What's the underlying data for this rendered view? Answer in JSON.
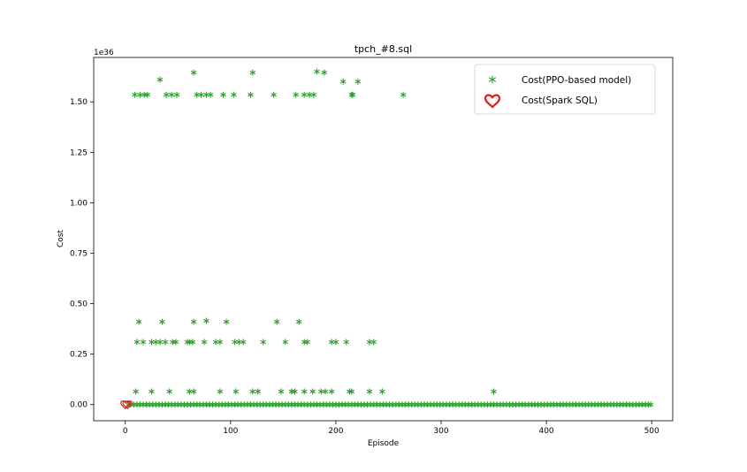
{
  "chart_data": {
    "type": "scatter",
    "title": "tpch_#8.sql",
    "xlabel": "Episode",
    "ylabel": "Cost",
    "offset_label": "1e36",
    "xlim": [
      -30,
      520
    ],
    "ylim": [
      -0.08,
      1.72
    ],
    "x_ticks": [
      0,
      100,
      200,
      300,
      400,
      500
    ],
    "y_ticks": [
      0.0,
      0.25,
      0.5,
      0.75,
      1.0,
      1.25,
      1.5
    ],
    "y_tick_labels": [
      "0.00",
      "0.25",
      "0.50",
      "0.75",
      "1.00",
      "1.25",
      "1.50"
    ],
    "legend_position": "top-right",
    "series": [
      {
        "name": "Cost(PPO-based model)",
        "marker": "star",
        "color": "#2ca02c",
        "points": [
          [
            9,
            1.535
          ],
          [
            14,
            1.535
          ],
          [
            18,
            1.535
          ],
          [
            21,
            1.535
          ],
          [
            33,
            1.61
          ],
          [
            39,
            1.535
          ],
          [
            44,
            1.535
          ],
          [
            49,
            1.535
          ],
          [
            65,
            1.645
          ],
          [
            68,
            1.535
          ],
          [
            72,
            1.535
          ],
          [
            77,
            1.535
          ],
          [
            81,
            1.535
          ],
          [
            93,
            1.535
          ],
          [
            103,
            1.535
          ],
          [
            119,
            1.535
          ],
          [
            121,
            1.645
          ],
          [
            141,
            1.535
          ],
          [
            162,
            1.535
          ],
          [
            170,
            1.535
          ],
          [
            175,
            1.535
          ],
          [
            179,
            1.535
          ],
          [
            182,
            1.65
          ],
          [
            189,
            1.645
          ],
          [
            207,
            1.6
          ],
          [
            215,
            1.535
          ],
          [
            216,
            1.535
          ],
          [
            221,
            1.6
          ],
          [
            264,
            1.535
          ],
          [
            13,
            0.41
          ],
          [
            35,
            0.41
          ],
          [
            65,
            0.41
          ],
          [
            77,
            0.415
          ],
          [
            96,
            0.41
          ],
          [
            144,
            0.41
          ],
          [
            165,
            0.41
          ],
          [
            11,
            0.31
          ],
          [
            17,
            0.31
          ],
          [
            25,
            0.31
          ],
          [
            29,
            0.31
          ],
          [
            33,
            0.31
          ],
          [
            38,
            0.31
          ],
          [
            45,
            0.31
          ],
          [
            48,
            0.31
          ],
          [
            59,
            0.31
          ],
          [
            61,
            0.31
          ],
          [
            64,
            0.31
          ],
          [
            75,
            0.31
          ],
          [
            86,
            0.31
          ],
          [
            90,
            0.31
          ],
          [
            104,
            0.31
          ],
          [
            108,
            0.31
          ],
          [
            112,
            0.31
          ],
          [
            131,
            0.31
          ],
          [
            152,
            0.31
          ],
          [
            170,
            0.31
          ],
          [
            173,
            0.31
          ],
          [
            196,
            0.31
          ],
          [
            200,
            0.31
          ],
          [
            210,
            0.31
          ],
          [
            232,
            0.31
          ],
          [
            236,
            0.31
          ],
          [
            10,
            0.065
          ],
          [
            25,
            0.065
          ],
          [
            42,
            0.065
          ],
          [
            61,
            0.065
          ],
          [
            65,
            0.065
          ],
          [
            90,
            0.065
          ],
          [
            105,
            0.065
          ],
          [
            121,
            0.065
          ],
          [
            126,
            0.065
          ],
          [
            148,
            0.065
          ],
          [
            158,
            0.065
          ],
          [
            161,
            0.065
          ],
          [
            170,
            0.065
          ],
          [
            178,
            0.065
          ],
          [
            186,
            0.065
          ],
          [
            190,
            0.065
          ],
          [
            196,
            0.065
          ],
          [
            213,
            0.065
          ],
          [
            215,
            0.065
          ],
          [
            232,
            0.065
          ],
          [
            244,
            0.065
          ],
          [
            350,
            0.065
          ],
          [
            3,
            0.0
          ],
          [
            5,
            0.0
          ],
          [
            8,
            0.0
          ],
          [
            11,
            0.0
          ],
          [
            14,
            0.0
          ],
          [
            17,
            0.0
          ],
          [
            20,
            0.0
          ],
          [
            23,
            0.0
          ],
          [
            26,
            0.0
          ],
          [
            29,
            0.0
          ],
          [
            32,
            0.0
          ],
          [
            35,
            0.0
          ],
          [
            38,
            0.0
          ],
          [
            41,
            0.0
          ],
          [
            44,
            0.0
          ],
          [
            47,
            0.0
          ],
          [
            50,
            0.0
          ],
          [
            53,
            0.0
          ],
          [
            56,
            0.0
          ],
          [
            59,
            0.0
          ],
          [
            62,
            0.0
          ],
          [
            65,
            0.0
          ],
          [
            68,
            0.0
          ],
          [
            71,
            0.0
          ],
          [
            74,
            0.0
          ],
          [
            77,
            0.0
          ],
          [
            80,
            0.0
          ],
          [
            83,
            0.0
          ],
          [
            86,
            0.0
          ],
          [
            89,
            0.0
          ],
          [
            92,
            0.0
          ],
          [
            95,
            0.0
          ],
          [
            98,
            0.0
          ],
          [
            101,
            0.0
          ],
          [
            104,
            0.0
          ],
          [
            107,
            0.0
          ],
          [
            110,
            0.0
          ],
          [
            113,
            0.0
          ],
          [
            116,
            0.0
          ],
          [
            119,
            0.0
          ],
          [
            122,
            0.0
          ],
          [
            125,
            0.0
          ],
          [
            128,
            0.0
          ],
          [
            131,
            0.0
          ],
          [
            134,
            0.0
          ],
          [
            137,
            0.0
          ],
          [
            140,
            0.0
          ],
          [
            143,
            0.0
          ],
          [
            146,
            0.0
          ],
          [
            149,
            0.0
          ],
          [
            152,
            0.0
          ],
          [
            155,
            0.0
          ],
          [
            158,
            0.0
          ],
          [
            161,
            0.0
          ],
          [
            164,
            0.0
          ],
          [
            167,
            0.0
          ],
          [
            170,
            0.0
          ],
          [
            173,
            0.0
          ],
          [
            176,
            0.0
          ],
          [
            179,
            0.0
          ],
          [
            182,
            0.0
          ],
          [
            185,
            0.0
          ],
          [
            188,
            0.0
          ],
          [
            191,
            0.0
          ],
          [
            194,
            0.0
          ],
          [
            197,
            0.0
          ],
          [
            200,
            0.0
          ],
          [
            203,
            0.0
          ],
          [
            206,
            0.0
          ],
          [
            209,
            0.0
          ],
          [
            212,
            0.0
          ],
          [
            215,
            0.0
          ],
          [
            218,
            0.0
          ],
          [
            221,
            0.0
          ],
          [
            224,
            0.0
          ],
          [
            227,
            0.0
          ],
          [
            230,
            0.0
          ],
          [
            233,
            0.0
          ],
          [
            236,
            0.0
          ],
          [
            239,
            0.0
          ],
          [
            242,
            0.0
          ],
          [
            245,
            0.0
          ],
          [
            248,
            0.0
          ],
          [
            251,
            0.0
          ],
          [
            254,
            0.0
          ],
          [
            257,
            0.0
          ],
          [
            260,
            0.0
          ],
          [
            263,
            0.0
          ],
          [
            266,
            0.0
          ],
          [
            269,
            0.0
          ],
          [
            272,
            0.0
          ],
          [
            275,
            0.0
          ],
          [
            278,
            0.0
          ],
          [
            281,
            0.0
          ],
          [
            284,
            0.0
          ],
          [
            287,
            0.0
          ],
          [
            290,
            0.0
          ],
          [
            293,
            0.0
          ],
          [
            296,
            0.0
          ],
          [
            299,
            0.0
          ],
          [
            302,
            0.0
          ],
          [
            305,
            0.0
          ],
          [
            308,
            0.0
          ],
          [
            311,
            0.0
          ],
          [
            314,
            0.0
          ],
          [
            317,
            0.0
          ],
          [
            320,
            0.0
          ],
          [
            323,
            0.0
          ],
          [
            326,
            0.0
          ],
          [
            329,
            0.0
          ],
          [
            332,
            0.0
          ],
          [
            335,
            0.0
          ],
          [
            338,
            0.0
          ],
          [
            341,
            0.0
          ],
          [
            344,
            0.0
          ],
          [
            347,
            0.0
          ],
          [
            350,
            0.0
          ],
          [
            353,
            0.0
          ],
          [
            356,
            0.0
          ],
          [
            359,
            0.0
          ],
          [
            362,
            0.0
          ],
          [
            365,
            0.0
          ],
          [
            368,
            0.0
          ],
          [
            371,
            0.0
          ],
          [
            374,
            0.0
          ],
          [
            377,
            0.0
          ],
          [
            380,
            0.0
          ],
          [
            383,
            0.0
          ],
          [
            386,
            0.0
          ],
          [
            389,
            0.0
          ],
          [
            392,
            0.0
          ],
          [
            395,
            0.0
          ],
          [
            398,
            0.0
          ],
          [
            401,
            0.0
          ],
          [
            404,
            0.0
          ],
          [
            407,
            0.0
          ],
          [
            410,
            0.0
          ],
          [
            413,
            0.0
          ],
          [
            416,
            0.0
          ],
          [
            419,
            0.0
          ],
          [
            422,
            0.0
          ],
          [
            425,
            0.0
          ],
          [
            428,
            0.0
          ],
          [
            431,
            0.0
          ],
          [
            434,
            0.0
          ],
          [
            437,
            0.0
          ],
          [
            440,
            0.0
          ],
          [
            443,
            0.0
          ],
          [
            446,
            0.0
          ],
          [
            449,
            0.0
          ],
          [
            452,
            0.0
          ],
          [
            455,
            0.0
          ],
          [
            458,
            0.0
          ],
          [
            461,
            0.0
          ],
          [
            464,
            0.0
          ],
          [
            467,
            0.0
          ],
          [
            470,
            0.0
          ],
          [
            473,
            0.0
          ],
          [
            476,
            0.0
          ],
          [
            479,
            0.0
          ],
          [
            482,
            0.0
          ],
          [
            485,
            0.0
          ],
          [
            488,
            0.0
          ],
          [
            491,
            0.0
          ],
          [
            494,
            0.0
          ],
          [
            497,
            0.0
          ],
          [
            499,
            0.0
          ]
        ]
      },
      {
        "name": "Cost(Spark SQL)",
        "marker": "heart",
        "color": "#e41a1c",
        "points": [
          [
            0,
            0.0
          ],
          [
            2,
            0.0
          ]
        ]
      }
    ]
  }
}
